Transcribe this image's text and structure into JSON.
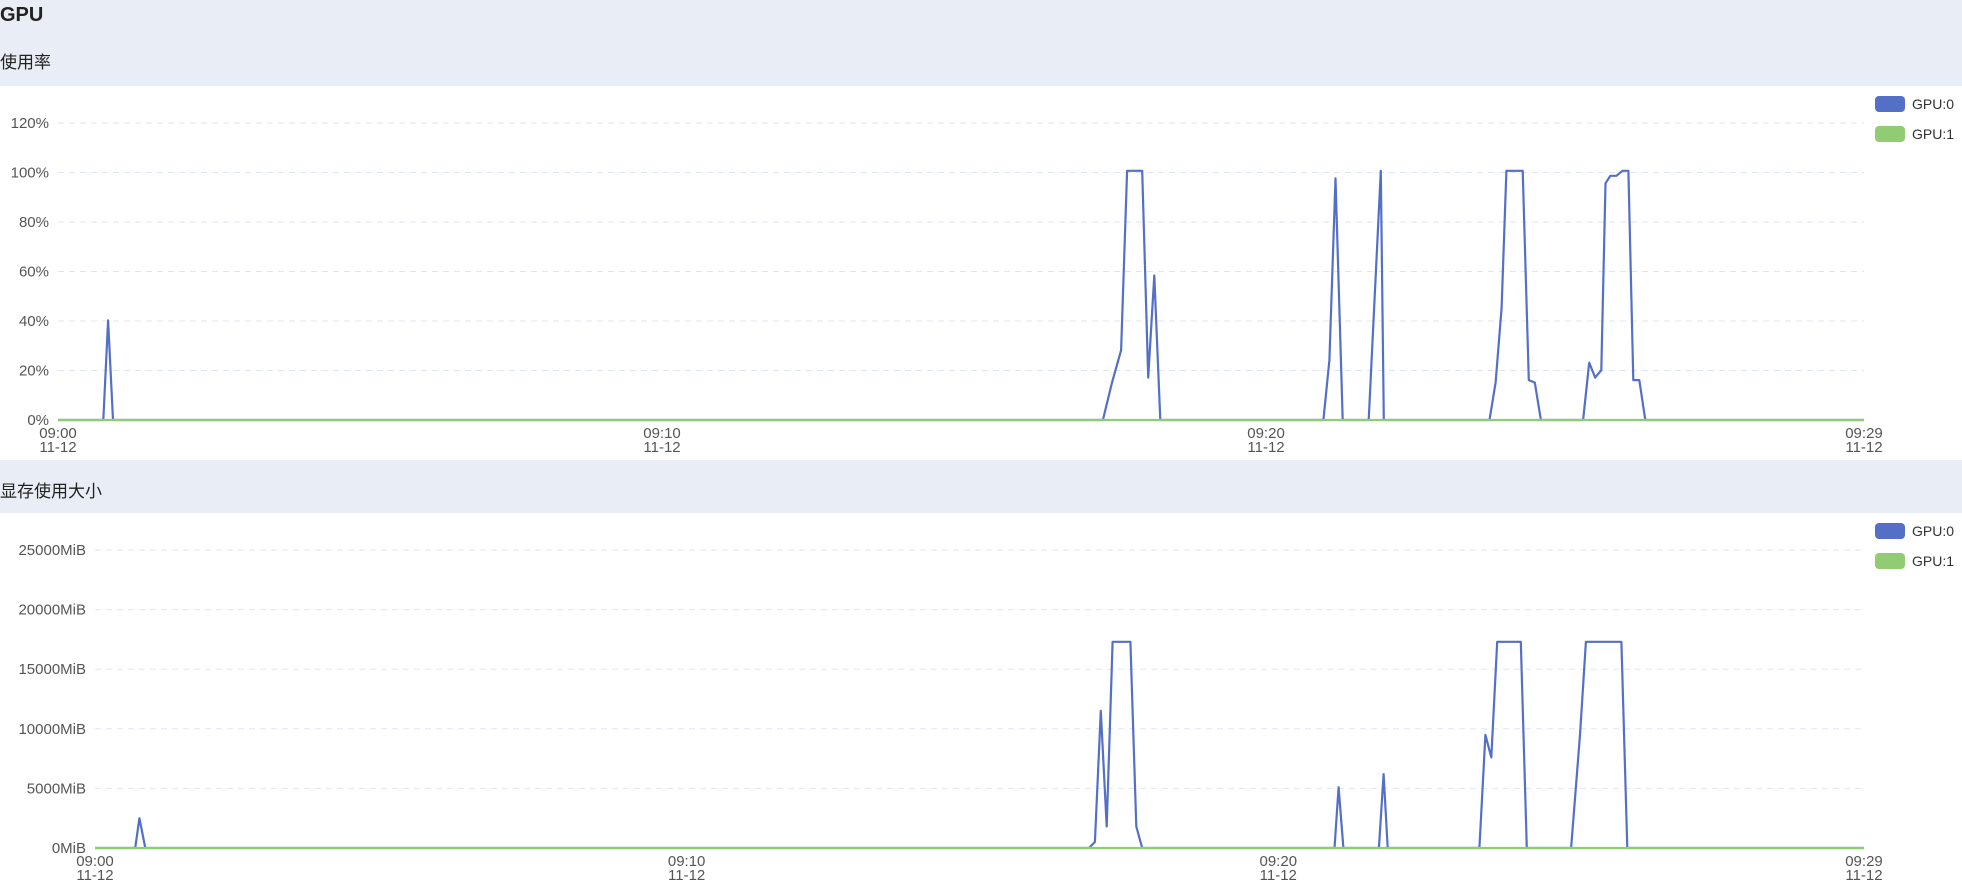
{
  "section_title": "GPU",
  "charts_titles": [
    "使用率",
    "显存使用大小"
  ],
  "colors": {
    "gpu0": "#5470c6",
    "gpu1": "#91cc75",
    "header_bg": "#e9edf5"
  },
  "chart_data": [
    {
      "type": "line",
      "title": "使用率",
      "x_ticks": [
        {
          "t": 0,
          "time": "09:00",
          "date": "11-12"
        },
        {
          "t": 10,
          "time": "09:10",
          "date": "11-12"
        },
        {
          "t": 20,
          "time": "09:20",
          "date": "11-12"
        },
        {
          "t": 29.9,
          "time": "09:29",
          "date": "11-12"
        }
      ],
      "xlim": [
        0,
        29.9
      ],
      "y_ticks": [
        "0%",
        "20%",
        "40%",
        "60%",
        "80%",
        "100%",
        "120%"
      ],
      "ylim": [
        0,
        120
      ],
      "series": [
        {
          "name": "GPU:0",
          "color": "#5470c6",
          "points": [
            [
              0,
              0
            ],
            [
              0.75,
              0
            ],
            [
              0.83,
              40
            ],
            [
              0.91,
              0
            ],
            [
              17.3,
              0
            ],
            [
              17.45,
              15
            ],
            [
              17.6,
              28
            ],
            [
              17.7,
              100
            ],
            [
              17.95,
              100
            ],
            [
              18.05,
              17
            ],
            [
              18.15,
              58
            ],
            [
              18.25,
              0
            ],
            [
              20.95,
              0
            ],
            [
              21.05,
              24
            ],
            [
              21.15,
              97
            ],
            [
              21.27,
              0
            ],
            [
              21.7,
              0
            ],
            [
              21.9,
              100
            ],
            [
              21.95,
              0
            ],
            [
              23.7,
              0
            ],
            [
              23.8,
              15
            ],
            [
              23.9,
              45
            ],
            [
              23.98,
              100
            ],
            [
              24.25,
              100
            ],
            [
              24.35,
              16
            ],
            [
              24.45,
              15
            ],
            [
              24.55,
              0
            ],
            [
              25.25,
              0
            ],
            [
              25.35,
              23
            ],
            [
              25.45,
              17
            ],
            [
              25.55,
              20
            ],
            [
              25.62,
              95
            ],
            [
              25.7,
              98
            ],
            [
              25.8,
              98
            ],
            [
              25.9,
              100
            ],
            [
              26.0,
              100
            ],
            [
              26.08,
              16
            ],
            [
              26.18,
              16
            ],
            [
              26.28,
              0
            ],
            [
              29.9,
              0
            ]
          ]
        },
        {
          "name": "GPU:1",
          "color": "#91cc75",
          "points": [
            [
              0,
              0
            ],
            [
              29.9,
              0
            ]
          ]
        }
      ]
    },
    {
      "type": "line",
      "title": "显存使用大小",
      "x_ticks": [
        {
          "t": 0,
          "time": "09:00",
          "date": "11-12"
        },
        {
          "t": 10,
          "time": "09:10",
          "date": "11-12"
        },
        {
          "t": 20,
          "time": "09:20",
          "date": "11-12"
        },
        {
          "t": 29.9,
          "time": "09:29",
          "date": "11-12"
        }
      ],
      "xlim": [
        0,
        29.9
      ],
      "y_ticks": [
        "0MiB",
        "5000MiB",
        "10000MiB",
        "15000MiB",
        "20000MiB",
        "25000MiB"
      ],
      "ylim": [
        0,
        25000
      ],
      "series": [
        {
          "name": "GPU:0",
          "color": "#5470c6",
          "points": [
            [
              0,
              0
            ],
            [
              0.68,
              0
            ],
            [
              0.75,
              2500
            ],
            [
              0.85,
              0
            ],
            [
              16.8,
              0
            ],
            [
              16.9,
              500
            ],
            [
              17.0,
              11500
            ],
            [
              17.1,
              1800
            ],
            [
              17.2,
              17300
            ],
            [
              17.5,
              17300
            ],
            [
              17.6,
              1800
            ],
            [
              17.7,
              0
            ],
            [
              20.95,
              0
            ],
            [
              21.02,
              5100
            ],
            [
              21.1,
              0
            ],
            [
              21.7,
              0
            ],
            [
              21.78,
              6200
            ],
            [
              21.85,
              0
            ],
            [
              23.4,
              0
            ],
            [
              23.5,
              9500
            ],
            [
              23.6,
              7600
            ],
            [
              23.7,
              17300
            ],
            [
              24.1,
              17300
            ],
            [
              24.2,
              0
            ],
            [
              24.95,
              0
            ],
            [
              25.1,
              9500
            ],
            [
              25.2,
              17300
            ],
            [
              25.8,
              17300
            ],
            [
              25.9,
              0
            ],
            [
              29.9,
              0
            ]
          ]
        },
        {
          "name": "GPU:1",
          "color": "#91cc75",
          "points": [
            [
              0,
              0
            ],
            [
              29.9,
              0
            ]
          ]
        }
      ]
    }
  ]
}
